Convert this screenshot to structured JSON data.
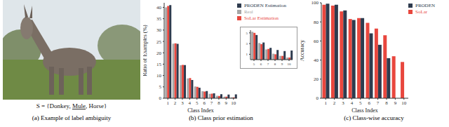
{
  "image": {
    "label_set": {
      "prefix": "S = {",
      "labels": [
        "Donkey",
        "Mule",
        "Horse"
      ],
      "separator": ", ",
      "underlined": "Mule",
      "suffix": "}"
    },
    "caption": "(a) Example of label ambiguity"
  },
  "chart_data": [
    {
      "type": "bar",
      "title": "(b) Class prior estimation",
      "x_label": "Class Index",
      "y_label": "Ratio of Examples (%)",
      "categories": [
        "1",
        "2",
        "3",
        "4",
        "5",
        "6",
        "7",
        "8",
        "9",
        "10"
      ],
      "series": [
        {
          "name": "Real",
          "color": "#a6a6a6",
          "values": [
            40.0,
            24.0,
            14.5,
            8.7,
            5.2,
            3.1,
            1.9,
            1.1,
            0.7,
            0.4
          ]
        },
        {
          "name": "SoLar Estimation",
          "color": "#e8473e",
          "values": [
            40.6,
            24.2,
            14.7,
            8.9,
            5.0,
            2.9,
            2.0,
            1.0,
            0.7,
            0.4
          ]
        },
        {
          "name": "PRODEN Estimation",
          "color": "#2e3b4e",
          "values": [
            41.0,
            23.9,
            14.6,
            8.0,
            4.6,
            3.2,
            2.2,
            1.8,
            1.6,
            1.7
          ]
        }
      ],
      "ylim": [
        0,
        42
      ],
      "yticks": [
        0,
        5,
        10,
        15,
        20,
        25,
        30,
        35,
        40
      ],
      "grid": false,
      "legend": "upper right"
    },
    {
      "type": "bar",
      "categories": [
        "5",
        "6",
        "7",
        "8",
        "9",
        "10"
      ],
      "series": [
        {
          "color": "#a6a6a6",
          "values": [
            5.2,
            3.1,
            1.9,
            1.1,
            0.7,
            0.4
          ]
        },
        {
          "color": "#e8473e",
          "values": [
            5.0,
            2.9,
            2.0,
            1.0,
            0.7,
            0.4
          ]
        },
        {
          "color": "#2e3b4e",
          "values": [
            4.6,
            3.2,
            2.2,
            1.8,
            1.6,
            1.7
          ]
        }
      ],
      "ylim": [
        0,
        5.5
      ],
      "yticks": [
        0,
        1,
        2,
        3,
        4,
        5
      ],
      "grid": false
    },
    {
      "type": "bar",
      "title": "(c) Class-wise accuracy",
      "x_label": "Class Index",
      "y_label": "Accuracy",
      "categories": [
        "1",
        "2",
        "3",
        "4",
        "5",
        "6",
        "7",
        "8",
        "9",
        "10"
      ],
      "series": [
        {
          "name": "SoLar",
          "color": "#e8473e",
          "values": [
            98,
            97,
            91,
            83,
            84,
            79,
            73,
            66,
            44,
            38
          ]
        },
        {
          "name": "PRODEN",
          "color": "#2e3b4e",
          "values": [
            99,
            98,
            92,
            82,
            84,
            68,
            56,
            42,
            0,
            0
          ]
        }
      ],
      "ylim": [
        0,
        100
      ],
      "yticks": [
        0,
        20,
        40,
        60,
        80,
        100
      ],
      "grid": false,
      "legend": "upper right"
    }
  ]
}
